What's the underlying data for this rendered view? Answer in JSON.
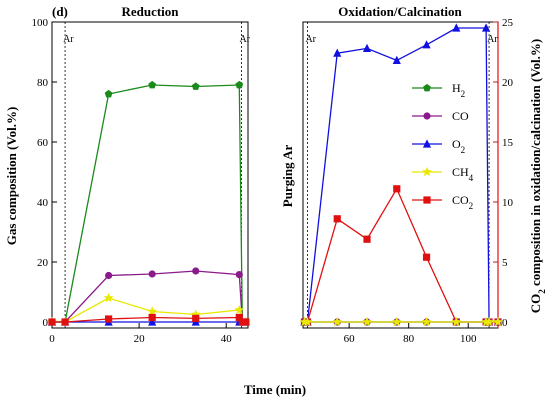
{
  "panel_label": "(d)",
  "chart_data": [
    {
      "type": "line",
      "title": "Reduction",
      "xlabel": "",
      "ylabel": "Gas composition (Vol.%)",
      "xlim": [
        0,
        45
      ],
      "ylim": [
        -2,
        100
      ],
      "xticks": [
        0,
        20,
        40
      ],
      "yticks": [
        0,
        20,
        40,
        60,
        80,
        100
      ],
      "annotations": [
        "Ar",
        "Ar"
      ],
      "ar_lines_x": [
        3,
        43.5
      ],
      "series": [
        {
          "name": "H2",
          "color": "#1a8a1a",
          "marker": "pentagon",
          "x": [
            0,
            3,
            13,
            23,
            33,
            43,
            43.7,
            44.5
          ],
          "y": [
            0,
            0,
            76,
            79,
            78.5,
            79,
            0,
            0
          ]
        },
        {
          "name": "CO",
          "color": "#8b1a8b",
          "marker": "circle",
          "x": [
            0,
            3,
            13,
            23,
            33,
            43,
            43.7,
            44.5
          ],
          "y": [
            0,
            0,
            15.5,
            16,
            17,
            15.8,
            0,
            0
          ]
        },
        {
          "name": "O2",
          "color": "#1010e0",
          "marker": "triangle",
          "x": [
            0,
            3,
            13,
            23,
            33,
            43,
            43.7,
            44.5
          ],
          "y": [
            0,
            0,
            0,
            0,
            0,
            0,
            0,
            0
          ]
        },
        {
          "name": "CH4",
          "color": "#e8e800",
          "marker": "star",
          "x": [
            0,
            3,
            13,
            23,
            33,
            43,
            43.7,
            44.5
          ],
          "y": [
            0,
            0,
            8,
            3.5,
            2.5,
            4,
            0,
            0
          ]
        },
        {
          "name": "CO2",
          "color": "#e01010",
          "marker": "square",
          "x": [
            0,
            3,
            13,
            23,
            33,
            43,
            43.7,
            44.5
          ],
          "y": [
            0,
            0,
            1,
            1.5,
            1.2,
            1.5,
            0,
            0
          ]
        }
      ]
    },
    {
      "type": "line",
      "title": "Oxidation/Calcination",
      "xlabel": "",
      "ylabel": "Purging Ar",
      "y2label": "CO2 composition in oxidation/calcination (Vol.%)",
      "xlim": [
        44.5,
        110
      ],
      "ylim": [
        -0.5,
        25
      ],
      "xticks": [
        60,
        80,
        100
      ],
      "y2ticks": [
        0,
        5,
        10,
        15,
        20,
        25
      ],
      "annotations": [
        "Ar",
        "Ar"
      ],
      "ar_lines_x": [
        46,
        107
      ],
      "series": [
        {
          "name": "O2",
          "color": "#1010e0",
          "marker": "triangle",
          "x": [
            45,
            46,
            56,
            66,
            76,
            86,
            96,
            106,
            107,
            110
          ],
          "y": [
            0,
            0,
            22.4,
            22.8,
            21.8,
            23.1,
            24.5,
            24.5,
            0,
            0
          ]
        },
        {
          "name": "CO2",
          "color": "#e01010",
          "marker": "square",
          "x": [
            45,
            46,
            56,
            66,
            76,
            86,
            96,
            106,
            107,
            110
          ],
          "y": [
            0,
            0,
            8.6,
            6.9,
            11.1,
            5.4,
            0,
            0,
            0,
            0
          ]
        },
        {
          "name": "H2",
          "color": "#1a8a1a",
          "marker": "pentagon",
          "x": [
            45,
            46,
            56,
            66,
            76,
            86,
            96,
            106,
            107,
            110
          ],
          "y": [
            0,
            0,
            0,
            0,
            0,
            0,
            0,
            0,
            0,
            0
          ]
        },
        {
          "name": "CO",
          "color": "#8b1a8b",
          "marker": "circle",
          "x": [
            45,
            46,
            56,
            66,
            76,
            86,
            96,
            106,
            107,
            110
          ],
          "y": [
            0,
            0,
            0,
            0,
            0,
            0,
            0,
            0,
            0,
            0
          ]
        },
        {
          "name": "CH4",
          "color": "#e8e800",
          "marker": "star",
          "x": [
            45,
            46,
            56,
            66,
            76,
            86,
            96,
            106,
            107,
            110
          ],
          "y": [
            0,
            0,
            0,
            0,
            0,
            0,
            0,
            0,
            0,
            0
          ]
        }
      ]
    }
  ],
  "shared_xlabel": "Time (min)",
  "legend": {
    "placement": "right-panel-middle",
    "entries": [
      {
        "base": "H",
        "sub": "2",
        "color": "#1a8a1a",
        "marker": "pentagon"
      },
      {
        "base": "CO",
        "sub": "",
        "color": "#8b1a8b",
        "marker": "circle"
      },
      {
        "base": "O",
        "sub": "2",
        "color": "#1010e0",
        "marker": "triangle"
      },
      {
        "base": "CH",
        "sub": "4",
        "color": "#e8e800",
        "marker": "star"
      },
      {
        "base": "CO",
        "sub": "2",
        "color": "#e01010",
        "marker": "square"
      }
    ]
  },
  "right_axis_color": "#e01010"
}
